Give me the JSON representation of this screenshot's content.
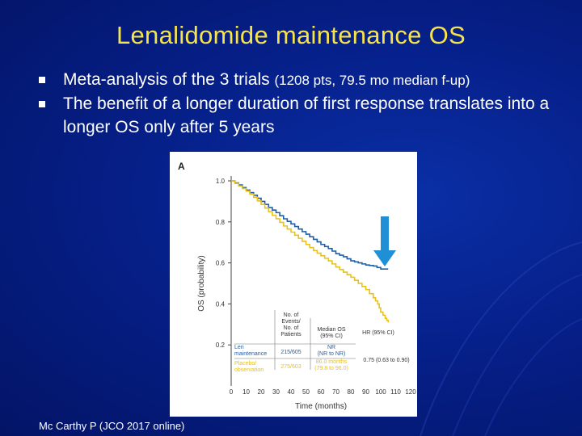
{
  "slide": {
    "title": "Lenalidomide maintenance  OS",
    "bullets": [
      {
        "main": "Meta-analysis of the 3 trials ",
        "small": "(1208 pts, 79.5 mo median f-up)"
      },
      {
        "main": "The benefit of a longer duration of first response translates into a longer OS only after 5 years",
        "small": ""
      }
    ],
    "citation": "Mc Carthy  P (JCO 2017 online)"
  },
  "colors": {
    "len": "#1f5fa8",
    "placebo": "#e8c21a",
    "arrow": "#1f8fd6",
    "title": "#f7e34a"
  },
  "chart_data": {
    "type": "line",
    "panel_label": "A",
    "xlabel": "Time (months)",
    "ylabel": "OS (probability)",
    "xlim": [
      0,
      120
    ],
    "ylim": [
      0,
      1.0
    ],
    "x_ticks": [
      "0",
      "10",
      "20",
      "30",
      "40",
      "50",
      "60",
      "70",
      "80",
      "90",
      "100",
      "110",
      "120"
    ],
    "y_ticks": [
      "0.2",
      "0.4",
      "0.6",
      "0.8",
      "1.0"
    ],
    "series": [
      {
        "name": "Len maintenance",
        "color": "#1f5fa8",
        "x": [
          0,
          5,
          10,
          15,
          20,
          25,
          30,
          35,
          40,
          45,
          50,
          55,
          60,
          65,
          70,
          75,
          80,
          85,
          90,
          95,
          100,
          105
        ],
        "y": [
          1.0,
          0.98,
          0.955,
          0.93,
          0.9,
          0.87,
          0.845,
          0.815,
          0.79,
          0.765,
          0.74,
          0.715,
          0.69,
          0.67,
          0.645,
          0.63,
          0.61,
          0.6,
          0.59,
          0.585,
          0.57,
          0.57
        ]
      },
      {
        "name": "Placebo/ observation",
        "color": "#e8c21a",
        "x": [
          0,
          5,
          10,
          15,
          20,
          25,
          30,
          35,
          40,
          45,
          50,
          55,
          60,
          65,
          70,
          75,
          80,
          85,
          90,
          95,
          98,
          100,
          103,
          105
        ],
        "y": [
          1.0,
          0.975,
          0.95,
          0.92,
          0.885,
          0.85,
          0.815,
          0.78,
          0.75,
          0.72,
          0.69,
          0.66,
          0.635,
          0.61,
          0.58,
          0.555,
          0.53,
          0.5,
          0.47,
          0.43,
          0.4,
          0.36,
          0.33,
          0.31
        ]
      }
    ],
    "table": {
      "header_events": "No. of Events/ No. of Patients",
      "header_median": "Median OS (95% CI)",
      "header_hr": "HR (95% CI)",
      "rows": [
        {
          "group": "Len maintenance",
          "events": "215/605",
          "median": "NR (NR to NR)",
          "hr": "0.75 (0.63 to 0.90)"
        },
        {
          "group": "Placebo/ observation",
          "events": "275/603",
          "median": "86.0 months (79.8 to 96.0)",
          "hr": ""
        }
      ]
    }
  }
}
